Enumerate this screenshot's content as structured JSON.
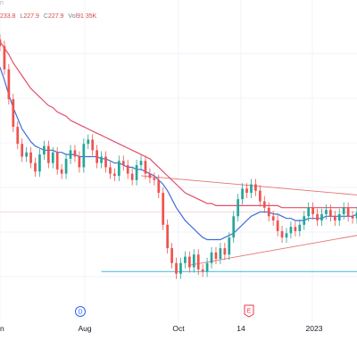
{
  "ohlc": {
    "header_prefix": "n",
    "low_label": "L",
    "low_value": "227.9",
    "close_label": "C",
    "close_value": "227.9",
    "vol_label": "Vol",
    "vol_value": "91.35K",
    "high_partial": "233.8"
  },
  "markers": [
    {
      "letter": "D",
      "kind": "dividend",
      "color": "#2962ff"
    },
    {
      "letter": "E",
      "kind": "earnings",
      "color": "#f23645"
    }
  ],
  "colors": {
    "up": "#26a69a",
    "down": "#ef5350",
    "ma_fast": "#3f6fd8",
    "ma_slow": "#e0506a",
    "trend_support": "#56c0e0",
    "trend_resistance": "#e57373",
    "grid": "#f0f3fa",
    "axis_text": "#131722"
  },
  "chart_data": {
    "type": "candlestick",
    "x_tick_labels": [
      "n",
      "Aug",
      "Oct",
      "14",
      "2023"
    ],
    "y_range": [
      205,
      340
    ],
    "closes": [
      331,
      320,
      306,
      293,
      285,
      279,
      281,
      276,
      272,
      280,
      284,
      276,
      281,
      273,
      271,
      278,
      282,
      279,
      274,
      285,
      287,
      282,
      276,
      279,
      274,
      271,
      270,
      277,
      275,
      271,
      268,
      275,
      277,
      271,
      269,
      268,
      262,
      247,
      236,
      229,
      224,
      229,
      232,
      227,
      233,
      226,
      225,
      229,
      234,
      231,
      236,
      233,
      241,
      251,
      259,
      264,
      262,
      266,
      263,
      258,
      255,
      251,
      249,
      244,
      241,
      243,
      246,
      244,
      247,
      251,
      255,
      252,
      249,
      252,
      254,
      251,
      249,
      252,
      255,
      251,
      250,
      253
    ],
    "ma_fast": [
      321,
      315,
      308,
      302,
      297,
      292,
      289,
      286,
      284,
      283,
      282,
      282,
      282,
      281,
      281,
      280,
      280,
      280,
      279,
      279,
      279,
      279,
      279,
      278,
      278,
      277,
      276,
      276,
      275,
      274,
      274,
      273,
      273,
      272,
      271,
      270,
      268,
      266,
      263,
      259,
      255,
      252,
      249,
      247,
      245,
      243,
      241,
      240,
      240,
      240,
      240,
      241,
      242,
      243,
      245,
      247,
      249,
      251,
      252,
      253,
      253,
      253,
      252,
      252,
      251,
      250,
      250,
      249,
      249,
      249,
      250,
      250,
      250,
      250,
      251,
      251,
      251,
      251,
      251,
      251,
      251,
      252
    ],
    "ma_slow": [
      333,
      330,
      327,
      323,
      320,
      317,
      314,
      311,
      309,
      307,
      305,
      303,
      302,
      300,
      299,
      298,
      296,
      295,
      294,
      293,
      292,
      291,
      290,
      289,
      288,
      287,
      286,
      285,
      284,
      283,
      282,
      281,
      280,
      279,
      278,
      276,
      274,
      272,
      270,
      268,
      266,
      264,
      262,
      261,
      260,
      259,
      258,
      257,
      257,
      256,
      256,
      256,
      256,
      256,
      256,
      256,
      256,
      256,
      256,
      256,
      256,
      256,
      256,
      256,
      255,
      255,
      255,
      255,
      255,
      255,
      255,
      255,
      255,
      255,
      255,
      255,
      255,
      255,
      255,
      255,
      255,
      255
    ],
    "trendlines": [
      {
        "name": "support-horizontal",
        "from_bar": 23,
        "from_value": 225,
        "to_bar": 81,
        "to_value": 225
      },
      {
        "name": "resistance-descending",
        "from_bar": 32,
        "from_value": 270,
        "to_bar": 81,
        "to_value": 261
      },
      {
        "name": "rising-channel",
        "from_bar": 43,
        "from_value": 228,
        "to_bar": 81,
        "to_value": 242
      },
      {
        "name": "reference-level",
        "from_bar": 0,
        "from_value": 253,
        "to_bar": 81,
        "to_value": 253
      }
    ]
  }
}
